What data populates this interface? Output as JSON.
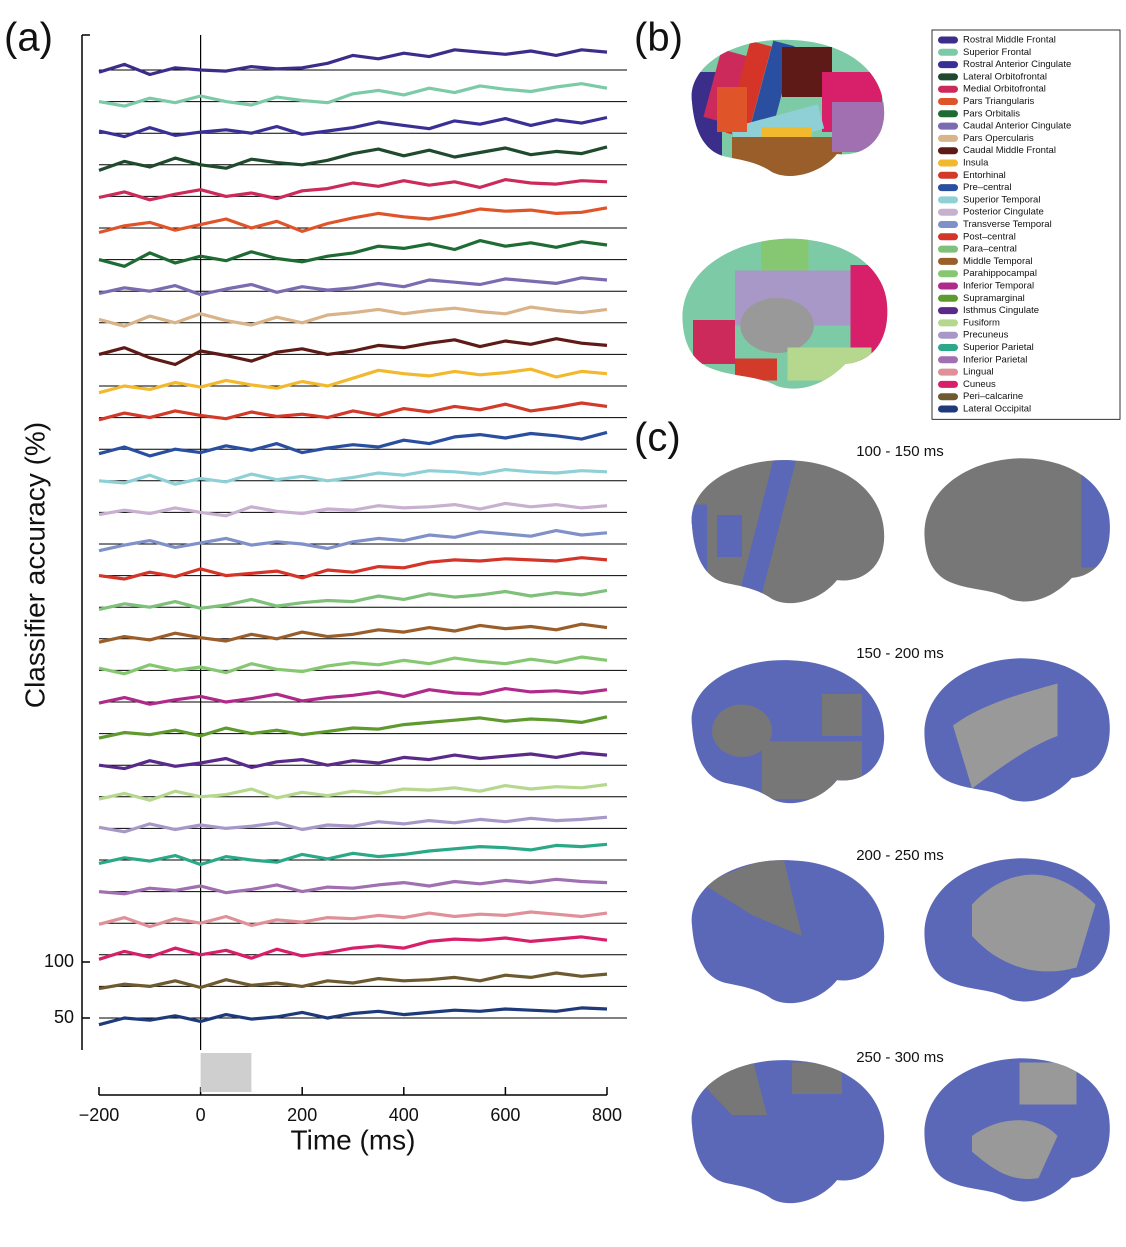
{
  "panels": {
    "a": "(a)",
    "b": "(b)",
    "c": "(c)"
  },
  "windows": [
    "100 - 150 ms",
    "150 - 200 ms",
    "200 - 250 ms",
    "250 - 300 ms"
  ],
  "chart_data": {
    "type": "line",
    "xlabel": "Time (ms)",
    "ylabel": "Classifier accuracy (%)",
    "xlim": [
      -200,
      800
    ],
    "xticks": [
      {
        "value": -200,
        "label": "−200"
      },
      0,
      200,
      400,
      600,
      800
    ],
    "ylim": [
      50,
      100
    ],
    "yticks": [
      50,
      100
    ],
    "stimulus": [
      0,
      100
    ],
    "x": [
      -200,
      -150,
      -100,
      -50,
      0,
      50,
      100,
      150,
      200,
      250,
      300,
      350,
      400,
      450,
      500,
      550,
      600,
      650,
      700,
      750,
      800
    ],
    "series": [
      {
        "name": "Rostral Middle Frontal",
        "color": "#3b2e8a",
        "values": [
          48,
          55,
          46,
          52,
          50,
          49,
          53,
          51,
          52,
          56,
          63,
          60,
          65,
          62,
          68,
          66,
          64,
          67,
          63,
          68,
          66
        ]
      },
      {
        "name": "Superior Frontal",
        "color": "#7ccaa6",
        "values": [
          50,
          46,
          53,
          49,
          55,
          50,
          47,
          54,
          51,
          49,
          57,
          60,
          56,
          62,
          58,
          64,
          61,
          59,
          63,
          66,
          62
        ]
      },
      {
        "name": "Rostral Anterior Cingulate",
        "color": "#3a2f95",
        "values": [
          52,
          47,
          55,
          48,
          51,
          53,
          50,
          56,
          49,
          52,
          55,
          60,
          57,
          54,
          61,
          58,
          63,
          57,
          62,
          59,
          64
        ]
      },
      {
        "name": "Lateral Orbitofrontal",
        "color": "#1f4a2e",
        "values": [
          45,
          53,
          48,
          56,
          50,
          47,
          55,
          52,
          50,
          54,
          60,
          64,
          58,
          63,
          57,
          61,
          65,
          59,
          62,
          60,
          66
        ]
      },
      {
        "name": "Medial Orbitofrontal",
        "color": "#cc2a5a",
        "values": [
          49,
          54,
          47,
          52,
          56,
          50,
          53,
          48,
          55,
          57,
          62,
          59,
          64,
          60,
          63,
          58,
          65,
          62,
          61,
          64,
          63
        ]
      },
      {
        "name": "Pars Triangularis",
        "color": "#e0542a",
        "values": [
          46,
          52,
          55,
          48,
          53,
          58,
          50,
          56,
          47,
          54,
          59,
          63,
          60,
          58,
          62,
          67,
          65,
          66,
          63,
          64,
          68
        ]
      },
      {
        "name": "Pars Orbitalis",
        "color": "#1e6b34",
        "values": [
          50,
          44,
          56,
          47,
          53,
          49,
          57,
          51,
          48,
          53,
          56,
          62,
          60,
          64,
          59,
          67,
          62,
          65,
          61,
          66,
          63
        ]
      },
      {
        "name": "Caudal Anterior Cingulate",
        "color": "#7b6bb0",
        "values": [
          48,
          53,
          50,
          55,
          47,
          52,
          56,
          49,
          54,
          51,
          53,
          57,
          54,
          60,
          58,
          56,
          61,
          59,
          57,
          62,
          60
        ]
      },
      {
        "name": "Pars Opercularis",
        "color": "#d9b38a",
        "values": [
          53,
          47,
          56,
          50,
          58,
          52,
          48,
          55,
          50,
          57,
          59,
          62,
          58,
          61,
          63,
          60,
          58,
          64,
          61,
          59,
          62
        ]
      },
      {
        "name": "Caudal Middle Frontal",
        "color": "#5e1a16",
        "values": [
          50,
          56,
          47,
          41,
          53,
          49,
          44,
          52,
          55,
          50,
          53,
          58,
          56,
          60,
          63,
          57,
          62,
          59,
          64,
          60,
          58
        ]
      },
      {
        "name": "Insula",
        "color": "#f2b92e",
        "values": [
          44,
          50,
          47,
          53,
          49,
          55,
          51,
          48,
          54,
          50,
          57,
          64,
          61,
          59,
          63,
          60,
          62,
          65,
          58,
          63,
          61
        ]
      },
      {
        "name": "Entorhinal",
        "color": "#d23a2a",
        "values": [
          48,
          54,
          50,
          56,
          52,
          49,
          55,
          51,
          53,
          50,
          56,
          52,
          58,
          55,
          60,
          57,
          62,
          56,
          59,
          63,
          60
        ]
      },
      {
        "name": "Pre–central",
        "color": "#2a4fa0",
        "values": [
          46,
          52,
          44,
          50,
          47,
          53,
          49,
          55,
          47,
          51,
          54,
          52,
          58,
          55,
          61,
          63,
          60,
          64,
          62,
          59,
          65
        ]
      },
      {
        "name": "Superior Temporal",
        "color": "#8fd0d6",
        "values": [
          50,
          48,
          55,
          47,
          52,
          49,
          56,
          51,
          54,
          50,
          53,
          57,
          55,
          59,
          58,
          56,
          60,
          58,
          57,
          59,
          58
        ]
      },
      {
        "name": "Posterior Cingulate",
        "color": "#c8b0d0",
        "values": [
          48,
          52,
          49,
          54,
          50,
          47,
          55,
          51,
          49,
          53,
          52,
          56,
          54,
          55,
          57,
          53,
          58,
          55,
          57,
          54,
          56
        ]
      },
      {
        "name": "Transverse Temporal",
        "color": "#8090c8",
        "values": [
          44,
          49,
          53,
          47,
          51,
          55,
          49,
          52,
          50,
          46,
          52,
          55,
          53,
          58,
          56,
          61,
          59,
          57,
          62,
          58,
          60
        ]
      },
      {
        "name": "Post–central",
        "color": "#d43528",
        "values": [
          50,
          47,
          53,
          49,
          56,
          50,
          52,
          54,
          48,
          55,
          53,
          58,
          57,
          62,
          64,
          63,
          65,
          64,
          63,
          66,
          64
        ]
      },
      {
        "name": "Para–central",
        "color": "#7fc07a",
        "values": [
          48,
          53,
          50,
          55,
          49,
          52,
          57,
          51,
          54,
          56,
          55,
          60,
          57,
          62,
          59,
          61,
          64,
          60,
          63,
          61,
          65
        ]
      },
      {
        "name": "Middle Temporal",
        "color": "#9a5e2a",
        "values": [
          47,
          52,
          49,
          55,
          51,
          48,
          54,
          50,
          56,
          52,
          54,
          58,
          56,
          60,
          57,
          62,
          59,
          61,
          58,
          63,
          60
        ]
      },
      {
        "name": "Parahippocampal",
        "color": "#86c872",
        "values": [
          52,
          47,
          55,
          50,
          53,
          48,
          56,
          51,
          49,
          54,
          57,
          55,
          59,
          56,
          61,
          58,
          56,
          60,
          57,
          62,
          59
        ]
      },
      {
        "name": "Inferior Temporal",
        "color": "#b02a8a",
        "values": [
          49,
          54,
          48,
          52,
          55,
          50,
          53,
          57,
          51,
          54,
          56,
          59,
          55,
          61,
          58,
          57,
          62,
          59,
          60,
          58,
          61
        ]
      },
      {
        "name": "Supramarginal",
        "color": "#5e9a2e",
        "values": [
          46,
          51,
          49,
          53,
          48,
          55,
          50,
          53,
          49,
          52,
          55,
          54,
          58,
          60,
          62,
          64,
          61,
          63,
          62,
          60,
          65
        ]
      },
      {
        "name": "Isthmus Cingulate",
        "color": "#5a2a8a",
        "values": [
          50,
          47,
          54,
          49,
          52,
          56,
          48,
          53,
          55,
          50,
          54,
          52,
          57,
          55,
          59,
          56,
          58,
          60,
          57,
          61,
          59
        ]
      },
      {
        "name": "Fusiform",
        "color": "#b6d88e",
        "values": [
          48,
          53,
          47,
          55,
          50,
          52,
          57,
          49,
          54,
          51,
          55,
          53,
          57,
          56,
          58,
          55,
          60,
          57,
          59,
          58,
          61
        ]
      },
      {
        "name": "Precuneus",
        "color": "#a898c8",
        "values": [
          51,
          47,
          54,
          49,
          53,
          50,
          52,
          55,
          49,
          53,
          52,
          56,
          54,
          57,
          55,
          58,
          56,
          59,
          57,
          58,
          60
        ]
      },
      {
        "name": "Superior Parietal",
        "color": "#2aa888",
        "values": [
          47,
          52,
          49,
          54,
          46,
          53,
          50,
          48,
          55,
          51,
          56,
          53,
          55,
          58,
          60,
          62,
          61,
          59,
          63,
          62,
          64
        ]
      },
      {
        "name": "Inferior Parietal",
        "color": "#a070b0",
        "values": [
          50,
          48,
          53,
          51,
          55,
          49,
          52,
          56,
          50,
          54,
          53,
          56,
          58,
          55,
          59,
          57,
          60,
          58,
          61,
          59,
          58
        ]
      },
      {
        "name": "Lingual",
        "color": "#e09098",
        "values": [
          49,
          55,
          47,
          54,
          50,
          56,
          48,
          53,
          51,
          55,
          54,
          57,
          55,
          59,
          56,
          58,
          57,
          60,
          58,
          56,
          59
        ]
      },
      {
        "name": "Cuneus",
        "color": "#d8206a",
        "values": [
          46,
          53,
          48,
          56,
          50,
          54,
          47,
          55,
          49,
          52,
          56,
          58,
          56,
          62,
          64,
          63,
          65,
          62,
          64,
          66,
          63
        ]
      },
      {
        "name": "Peri–calcarine",
        "color": "#6e5a30",
        "values": [
          48,
          52,
          50,
          55,
          49,
          56,
          51,
          53,
          50,
          55,
          53,
          57,
          55,
          56,
          58,
          55,
          60,
          58,
          62,
          59,
          61
        ]
      },
      {
        "name": "Lateral Occipital",
        "color": "#1e3a7a",
        "values": [
          44,
          50,
          48,
          52,
          47,
          53,
          49,
          51,
          55,
          50,
          54,
          56,
          53,
          55,
          57,
          56,
          58,
          57,
          56,
          59,
          58
        ]
      }
    ]
  }
}
